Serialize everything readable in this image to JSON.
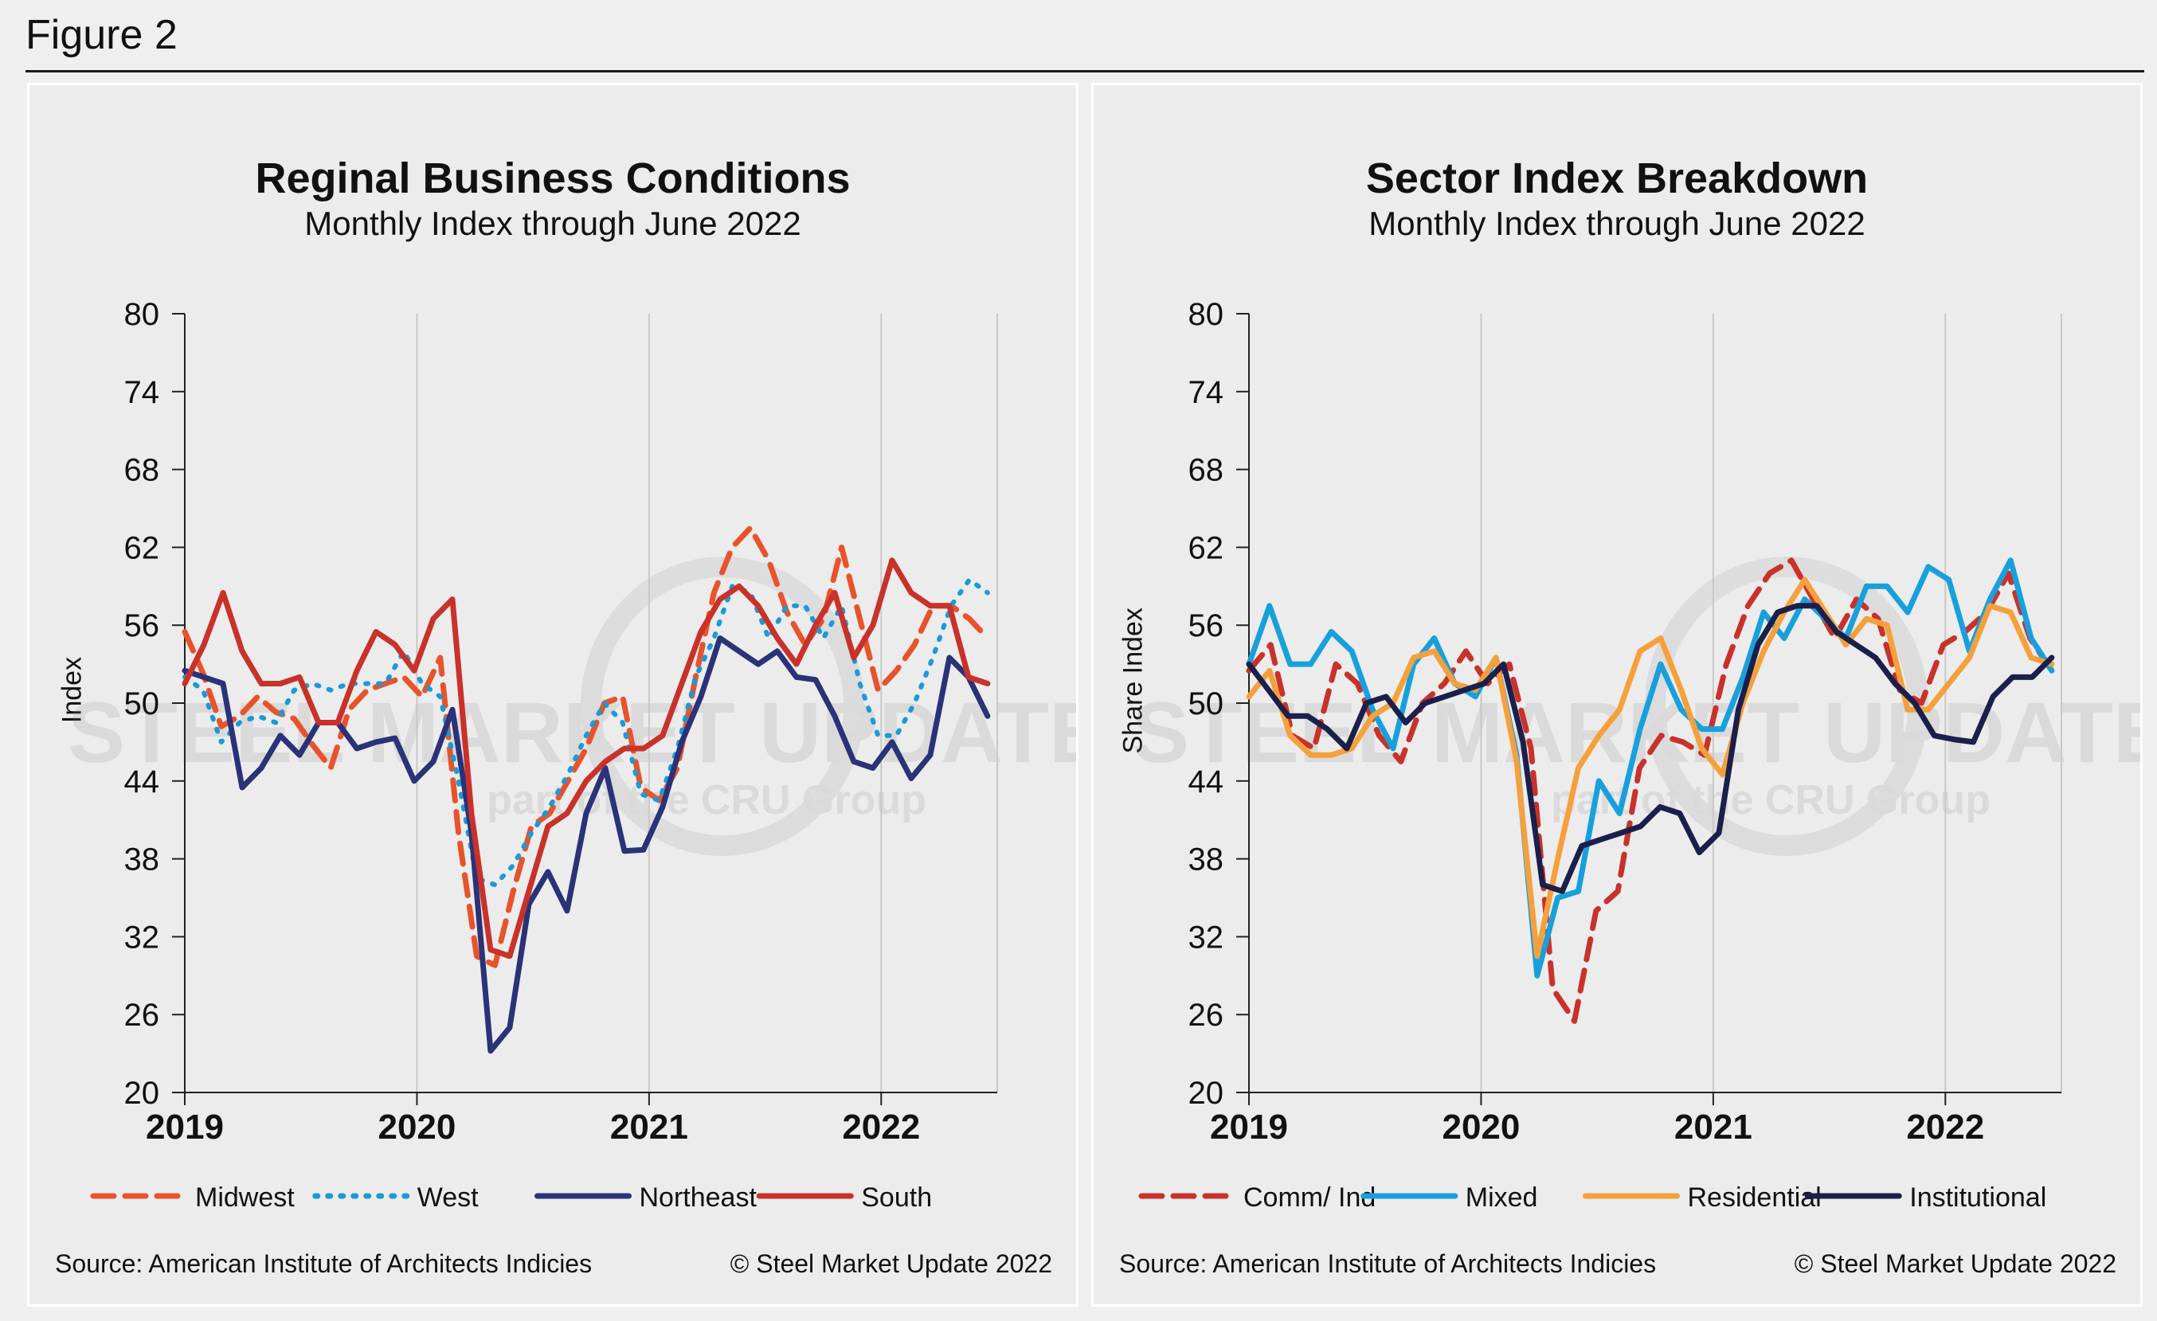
{
  "figure": {
    "label": "Figure 2"
  },
  "charts": [
    {
      "id": "regional",
      "title": "Reginal Business Conditions",
      "subtitle": "Monthly Index through June 2022",
      "ylabel": "Index",
      "source": "Source: American Institute of Architects Indicies",
      "copyright": "© Steel Market Update 2022",
      "watermark": {
        "brand": "STEEL MARKET UPDATE",
        "tagline": "part of the CRU Group"
      }
    },
    {
      "id": "sector",
      "title": "Sector Index Breakdown",
      "subtitle": "Monthly Index through June 2022",
      "ylabel": "Share Index",
      "source": "Source: American Institute of Architects Indicies",
      "copyright": "© Steel Market Update 2022",
      "watermark": {
        "brand": "STEEL MARKET UPDATE",
        "tagline": "part of the CRU Group"
      }
    }
  ],
  "chart_data": [
    {
      "type": "line",
      "title": "Reginal Business Conditions",
      "subtitle": "Monthly Index through June 2022",
      "xlabel": "",
      "ylabel": "Index",
      "x_start": "2019-01",
      "x_ticks": [
        "2019",
        "2020",
        "2021",
        "2022"
      ],
      "yticks": [
        20,
        26,
        32,
        38,
        44,
        50,
        56,
        62,
        68,
        74,
        80
      ],
      "ylim": [
        20,
        80
      ],
      "grid": "vertical",
      "legend": "bottom",
      "series": [
        {
          "name": "Midwest",
          "color": "#e8532b",
          "style": "dashed",
          "values": [
            55.5,
            52.3,
            48.2,
            49.0,
            50.5,
            49.3,
            48.8,
            46.8,
            45.0,
            49.5,
            51.0,
            51.5,
            52.0,
            50.5,
            53.5,
            40.0,
            30.5,
            29.8,
            35.5,
            40.5,
            41.5,
            44.0,
            46.5,
            50.0,
            50.5,
            43.5,
            42.5,
            45.0,
            52.0,
            58.5,
            62.0,
            63.5,
            61.0,
            57.0,
            54.5,
            56.5,
            62.0,
            56.5,
            51.0,
            52.5,
            54.5,
            57.5,
            57.5,
            56.5,
            55.0
          ]
        },
        {
          "name": "West",
          "color": "#1a9ad6",
          "style": "dotted",
          "values": [
            52.0,
            51.0,
            47.0,
            48.5,
            49.0,
            48.5,
            51.0,
            51.5,
            51.0,
            51.5,
            51.5,
            51.5,
            54.0,
            51.5,
            50.5,
            44.0,
            36.5,
            36.0,
            37.5,
            40.0,
            42.0,
            44.5,
            47.5,
            50.0,
            48.5,
            43.0,
            42.5,
            46.5,
            52.0,
            55.0,
            59.0,
            58.5,
            55.0,
            57.5,
            57.5,
            55.0,
            57.5,
            51.5,
            47.5,
            47.5,
            50.0,
            53.5,
            57.5,
            59.5,
            58.5
          ]
        },
        {
          "name": "Northeast",
          "color": "#2a3278",
          "style": "solid",
          "values": [
            52.5,
            52.0,
            51.5,
            43.5,
            45.0,
            47.5,
            46.0,
            48.5,
            48.5,
            46.5,
            47.0,
            47.3,
            44.0,
            45.5,
            49.5,
            40.0,
            23.2,
            25.0,
            34.5,
            37.0,
            34.0,
            41.5,
            45.0,
            38.6,
            38.7,
            42.0,
            47.0,
            50.5,
            55.0,
            54.0,
            53.0,
            54.0,
            52.0,
            51.8,
            49.0,
            45.5,
            45.0,
            47.0,
            44.2,
            46.0,
            53.5,
            52.0,
            49.0
          ]
        },
        {
          "name": "South",
          "color": "#c8322a",
          "style": "solid",
          "values": [
            51.5,
            54.5,
            58.5,
            54.0,
            51.5,
            51.5,
            52.0,
            48.5,
            48.5,
            52.5,
            55.5,
            54.5,
            52.5,
            56.5,
            58.0,
            41.5,
            31.0,
            30.5,
            35.5,
            40.5,
            41.5,
            44.0,
            45.5,
            46.5,
            46.5,
            47.5,
            51.5,
            55.5,
            58.0,
            59.0,
            57.5,
            55.0,
            53.0,
            56.0,
            58.5,
            53.5,
            56.0,
            61.0,
            58.5,
            57.5,
            57.5,
            52.0,
            51.5
          ]
        }
      ]
    },
    {
      "type": "line",
      "title": "Sector Index Breakdown",
      "subtitle": "Monthly Index through June 2022",
      "xlabel": "",
      "ylabel": "Share Index",
      "x_start": "2019-01",
      "x_ticks": [
        "2019",
        "2020",
        "2021",
        "2022"
      ],
      "yticks": [
        20,
        26,
        32,
        38,
        44,
        50,
        56,
        62,
        68,
        74,
        80
      ],
      "ylim": [
        20,
        80
      ],
      "grid": "vertical",
      "legend": "bottom",
      "series": [
        {
          "name": "Comm/ Ind",
          "color": "#c8322a",
          "style": "dashed",
          "values": [
            52.5,
            54.5,
            47.5,
            46.5,
            53.0,
            51.5,
            47.5,
            45.5,
            50.0,
            51.5,
            54.0,
            51.5,
            53.0,
            46.5,
            28.0,
            25.5,
            34.0,
            35.5,
            45.0,
            47.5,
            47.0,
            46.0,
            53.0,
            57.5,
            60.0,
            61.0,
            58.0,
            55.0,
            58.0,
            56.5,
            51.0,
            50.0,
            54.5,
            55.5,
            57.0,
            60.0,
            55.0,
            52.5
          ]
        },
        {
          "name": "Mixed",
          "color": "#18a0dc",
          "style": "solid",
          "values": [
            53.0,
            57.5,
            53.0,
            53.0,
            55.5,
            54.0,
            49.5,
            46.5,
            53.0,
            55.0,
            51.5,
            50.5,
            53.5,
            46.0,
            29.0,
            35.0,
            35.5,
            44.0,
            41.5,
            48.0,
            53.0,
            49.5,
            48.0,
            48.0,
            52.0,
            57.0,
            55.0,
            58.0,
            56.5,
            55.0,
            59.0,
            59.0,
            57.0,
            60.5,
            59.5,
            54.0,
            58.0,
            61.0,
            55.0,
            52.5
          ]
        },
        {
          "name": "Residential",
          "color": "#f5a03c",
          "style": "solid",
          "values": [
            50.5,
            52.5,
            47.5,
            46.0,
            46.0,
            46.5,
            49.0,
            50.0,
            53.5,
            54.0,
            51.5,
            51.0,
            53.5,
            45.5,
            30.5,
            38.0,
            45.0,
            47.5,
            49.5,
            54.0,
            55.0,
            51.0,
            46.5,
            44.5,
            50.0,
            54.0,
            57.0,
            59.5,
            57.0,
            54.5,
            56.5,
            56.0,
            49.5,
            49.5,
            51.5,
            53.5,
            57.5,
            57.0,
            53.5,
            53.0
          ]
        },
        {
          "name": "Institutional",
          "color": "#1b1f4b",
          "style": "solid",
          "values": [
            53.0,
            51.0,
            49.0,
            49.0,
            48.0,
            46.5,
            50.0,
            50.5,
            48.5,
            50.0,
            50.5,
            51.0,
            51.5,
            53.0,
            47.0,
            36.0,
            35.5,
            39.0,
            39.5,
            40.0,
            40.5,
            42.0,
            41.5,
            38.5,
            40.0,
            49.5,
            54.5,
            57.0,
            57.5,
            57.5,
            55.5,
            54.5,
            53.5,
            51.5,
            50.0,
            47.5,
            47.2,
            47.0,
            50.5,
            52.0,
            52.0,
            53.5
          ]
        }
      ]
    }
  ]
}
